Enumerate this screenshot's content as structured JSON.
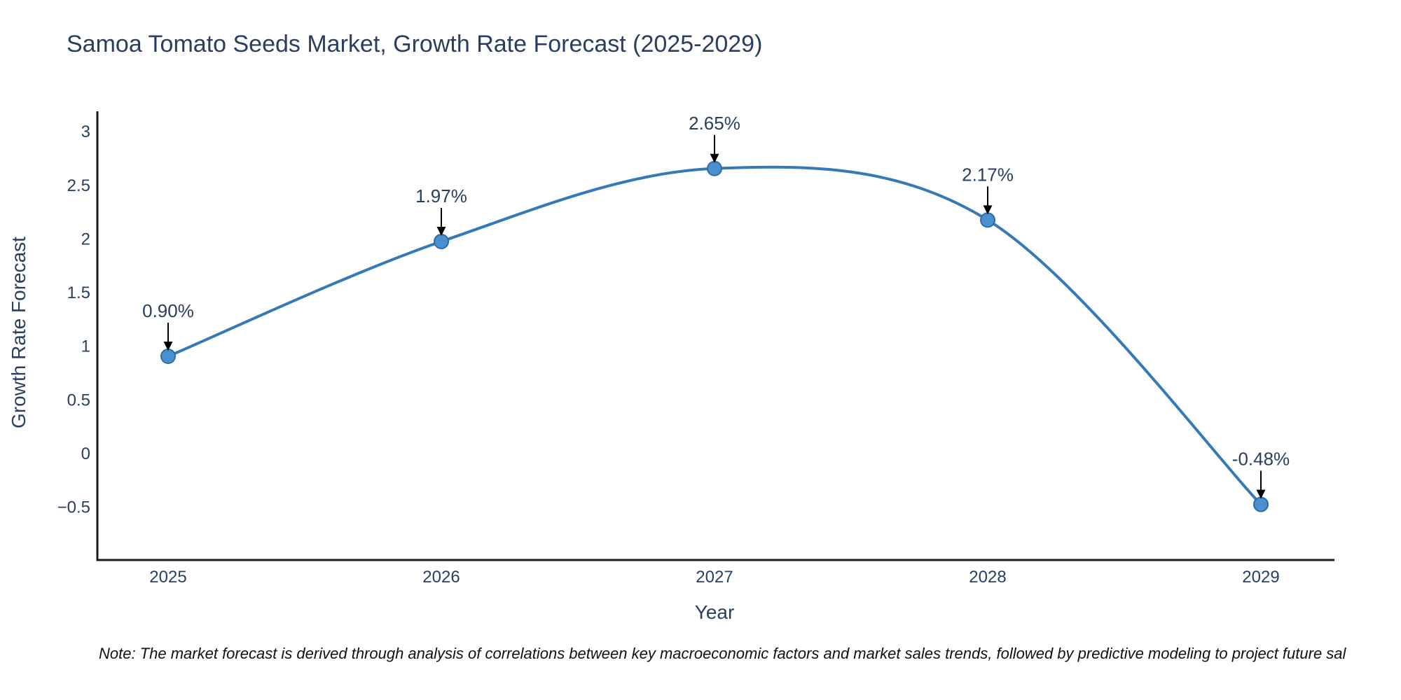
{
  "page": {
    "title": "Samoa Tomato Seeds Market, Growth Rate Forecast (2025-2029)",
    "note": "Note: The market forecast is derived through analysis of correlations between key macroeconomic factors and market sales trends, followed by predictive modeling to project future sal"
  },
  "chart_data": {
    "type": "line",
    "title": "Samoa Tomato Seeds Market, Growth Rate Forecast (2025-2029)",
    "xlabel": "Year",
    "ylabel": "Growth Rate Forecast",
    "categories": [
      "2025",
      "2026",
      "2027",
      "2028",
      "2029"
    ],
    "series": [
      {
        "name": "Growth Rate Forecast",
        "values": [
          0.9,
          1.97,
          2.65,
          2.17,
          -0.48
        ]
      }
    ],
    "point_labels": [
      "0.90%",
      "1.97%",
      "2.65%",
      "2.17%",
      "-0.48%"
    ],
    "ytick_values": [
      3,
      2.5,
      2,
      1.5,
      1,
      0.5,
      0,
      -0.5
    ],
    "ytick_labels": [
      "3",
      "2.5",
      "2",
      "1.5",
      "1",
      "0.5",
      "0",
      "−0.5"
    ],
    "ylim": [
      -1.0,
      3.18
    ],
    "grid": false,
    "legend_position": "none",
    "line_smoothing": "spline",
    "colors": {
      "line": "#3579b5",
      "marker_fill": "#4a90ce",
      "marker_edge": "#2e6da4",
      "axis_line": "#1a1a1a",
      "text": "#2a3f5f",
      "annotation_arrow": "#000000"
    }
  }
}
